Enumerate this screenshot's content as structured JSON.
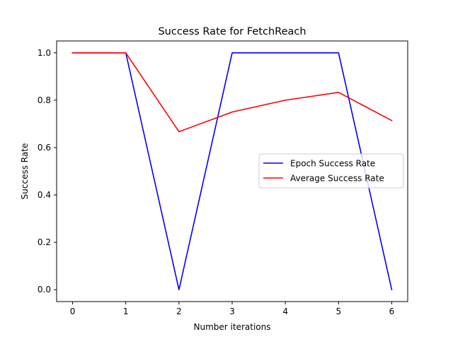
{
  "chart_data": {
    "type": "line",
    "title": "Success Rate for FetchReach",
    "xlabel": "Number iterations",
    "ylabel": "Success Rate",
    "x": [
      0,
      1,
      2,
      3,
      4,
      5,
      6
    ],
    "xlim": [
      -0.3,
      6.3
    ],
    "ylim": [
      -0.05,
      1.05
    ],
    "xticks": [
      0,
      1,
      2,
      3,
      4,
      5,
      6
    ],
    "yticks": [
      0.0,
      0.2,
      0.4,
      0.6,
      0.8,
      1.0
    ],
    "ytick_labels": [
      "0.0",
      "0.2",
      "0.4",
      "0.6",
      "0.8",
      "1.0"
    ],
    "grid": false,
    "legend_position": "center-right",
    "series": [
      {
        "name": "Epoch Success Rate",
        "color": "#0000ff",
        "values": [
          1.0,
          1.0,
          0.0,
          1.0,
          1.0,
          1.0,
          0.0
        ]
      },
      {
        "name": "Average Success Rate",
        "color": "#ff0000",
        "values": [
          1.0,
          1.0,
          0.667,
          0.75,
          0.8,
          0.833,
          0.714
        ]
      }
    ]
  }
}
